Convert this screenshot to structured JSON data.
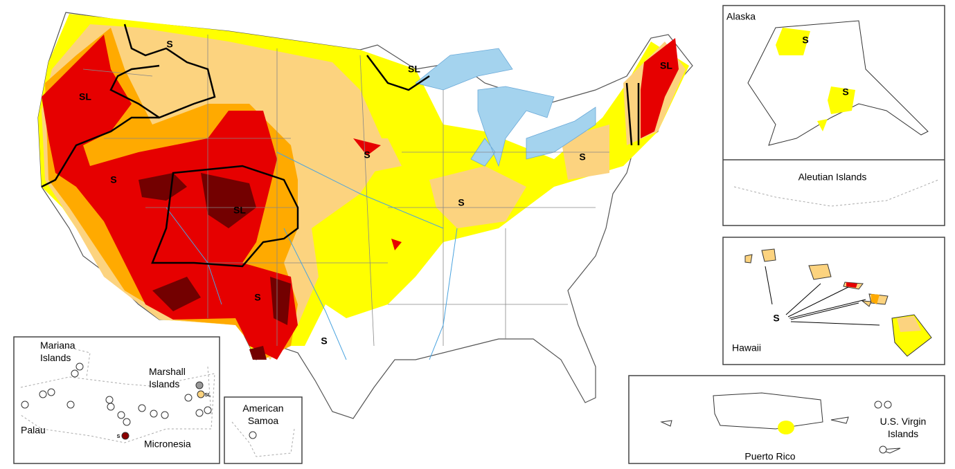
{
  "map": {
    "impact_labels": [
      "S",
      "SL",
      "SL",
      "SL",
      "S",
      "S",
      "S",
      "SL",
      "S",
      "S",
      "S"
    ]
  },
  "insets": {
    "alaska": {
      "title": "Alaska",
      "impact_labels": [
        "S",
        "S"
      ]
    },
    "aleutian": {
      "title": "Aleutian Islands"
    },
    "hawaii": {
      "title": "Hawaii",
      "impact_label": "S"
    },
    "puerto_rico": {
      "title": "Puerto Rico"
    },
    "virgin_islands": {
      "title": [
        "U.S. Virgin",
        "Islands"
      ]
    },
    "american_samoa": {
      "title": [
        "American",
        "Samoa"
      ]
    },
    "pacific": {
      "mariana": [
        "Mariana",
        "Islands"
      ],
      "marshall": [
        "Marshall",
        "Islands"
      ],
      "palau": "Palau",
      "micronesia": "Micronesia",
      "impact_labels": [
        "S",
        "SL"
      ]
    }
  }
}
